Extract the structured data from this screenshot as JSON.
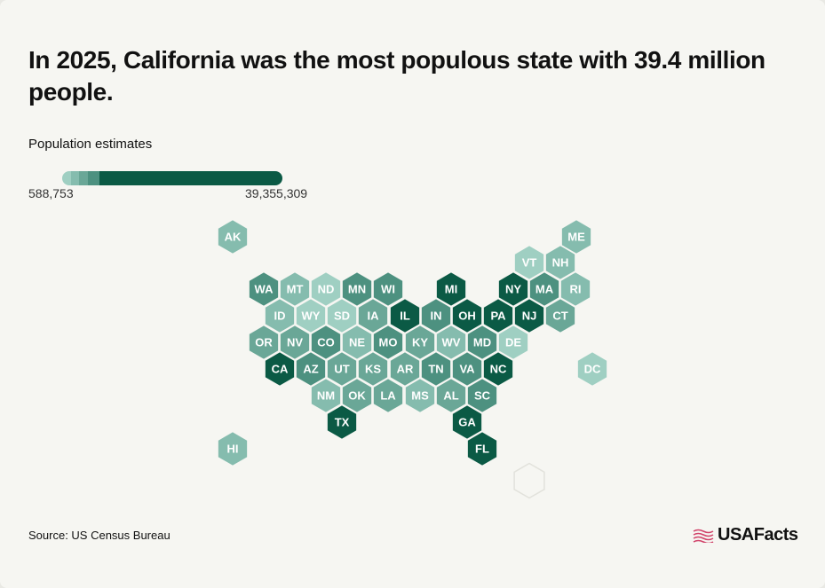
{
  "title": "In 2025, California was the most populous state with 39.4 million people.",
  "legend": {
    "title": "Population estimates",
    "min_label": "588,753",
    "max_label": "39,355,309",
    "scale_colors": [
      "#9fcfc2",
      "#85bcae",
      "#6aa797",
      "#4d9180",
      "#0b5a45"
    ]
  },
  "source": "Source: US Census Bureau",
  "brand": {
    "name": "USAFacts",
    "accent": "#d1436a"
  },
  "colors": {
    "background": "#f6f6f2",
    "empty_hex_stroke": "#e2e2dc"
  },
  "chart_data": {
    "type": "hexbin-map",
    "title": "In 2025, California was the most populous state with 39.4 million people.",
    "measure": "Population estimates",
    "range": [
      588753,
      39355309
    ],
    "tiles": [
      {
        "state": "AK",
        "level": 1
      },
      {
        "state": "ME",
        "level": 1
      },
      {
        "state": "VT",
        "level": 0
      },
      {
        "state": "NH",
        "level": 1
      },
      {
        "state": "WA",
        "level": 3
      },
      {
        "state": "MT",
        "level": 1
      },
      {
        "state": "ND",
        "level": 0
      },
      {
        "state": "MN",
        "level": 3
      },
      {
        "state": "WI",
        "level": 3
      },
      {
        "state": "MI",
        "level": 4
      },
      {
        "state": "NY",
        "level": 4
      },
      {
        "state": "MA",
        "level": 3
      },
      {
        "state": "RI",
        "level": 1
      },
      {
        "state": "ID",
        "level": 1
      },
      {
        "state": "WY",
        "level": 0
      },
      {
        "state": "SD",
        "level": 0
      },
      {
        "state": "IA",
        "level": 2
      },
      {
        "state": "IL",
        "level": 4
      },
      {
        "state": "IN",
        "level": 3
      },
      {
        "state": "OH",
        "level": 4
      },
      {
        "state": "PA",
        "level": 4
      },
      {
        "state": "NJ",
        "level": 4
      },
      {
        "state": "CT",
        "level": 2
      },
      {
        "state": "OR",
        "level": 2
      },
      {
        "state": "NV",
        "level": 2
      },
      {
        "state": "CO",
        "level": 3
      },
      {
        "state": "NE",
        "level": 1
      },
      {
        "state": "MO",
        "level": 3
      },
      {
        "state": "KY",
        "level": 2
      },
      {
        "state": "WV",
        "level": 1
      },
      {
        "state": "MD",
        "level": 3
      },
      {
        "state": "DE",
        "level": 0
      },
      {
        "state": "CA",
        "level": 4
      },
      {
        "state": "AZ",
        "level": 3
      },
      {
        "state": "UT",
        "level": 2
      },
      {
        "state": "KS",
        "level": 2
      },
      {
        "state": "AR",
        "level": 2
      },
      {
        "state": "TN",
        "level": 3
      },
      {
        "state": "VA",
        "level": 3
      },
      {
        "state": "NC",
        "level": 4
      },
      {
        "state": "DC",
        "level": 0
      },
      {
        "state": "NM",
        "level": 1
      },
      {
        "state": "OK",
        "level": 2
      },
      {
        "state": "LA",
        "level": 2
      },
      {
        "state": "MS",
        "level": 1
      },
      {
        "state": "AL",
        "level": 2
      },
      {
        "state": "SC",
        "level": 3
      },
      {
        "state": "TX",
        "level": 4
      },
      {
        "state": "GA",
        "level": 4
      },
      {
        "state": "HI",
        "level": 1
      },
      {
        "state": "FL",
        "level": 4
      }
    ]
  }
}
